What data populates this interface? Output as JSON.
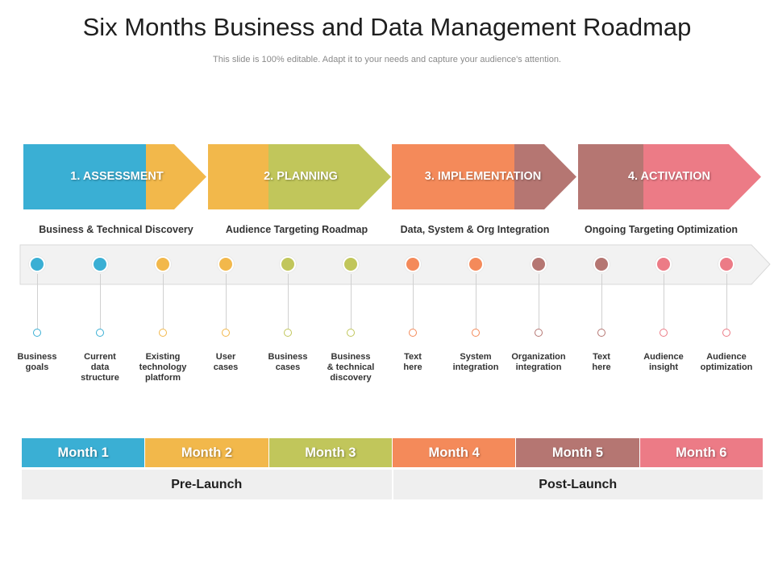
{
  "title": "Six Months Business and Data Management Roadmap",
  "subtitle": "This slide is 100% editable. Adapt it to your needs and capture your audience's attention.",
  "colors": {
    "blue": "#3aafd4",
    "yellow": "#f2b84b",
    "green": "#c1c65b",
    "orange": "#f48a5a",
    "mauve": "#b57672",
    "pink": "#ec7b86",
    "track": "#f2f2f2"
  },
  "phases": [
    {
      "label": "1. ASSESSMENT",
      "description": "Business  & Technical Discovery"
    },
    {
      "label": "2. PLANNING",
      "description": "Audience Targeting Roadmap"
    },
    {
      "label": "3. IMPLEMENTATION",
      "description": "Data, System & Org Integration"
    },
    {
      "label": "4. ACTIVATION",
      "description": "Ongoing Targeting Optimization"
    }
  ],
  "milestones": [
    {
      "label": "Business goals",
      "lines": [
        "Business",
        "goals"
      ]
    },
    {
      "label": "Current data structure",
      "lines": [
        "Current",
        "data",
        "structure"
      ]
    },
    {
      "label": "Existing technology platform",
      "lines": [
        "Existing",
        "technology",
        "platform"
      ]
    },
    {
      "label": "User cases",
      "lines": [
        "User",
        "cases"
      ]
    },
    {
      "label": "Business cases",
      "lines": [
        "Business",
        "cases"
      ]
    },
    {
      "label": "Business & technical discovery",
      "lines": [
        "Business",
        "& technical",
        "discovery"
      ]
    },
    {
      "label": "Text here",
      "lines": [
        "Text",
        "here"
      ]
    },
    {
      "label": "System integration",
      "lines": [
        "System",
        "integration"
      ]
    },
    {
      "label": "Organization integration",
      "lines": [
        "Organization",
        "integration"
      ]
    },
    {
      "label": "Text here",
      "lines": [
        "Text",
        "here"
      ]
    },
    {
      "label": "Audience insight",
      "lines": [
        "Audience",
        "insight"
      ]
    },
    {
      "label": "Audience optimization",
      "lines": [
        "Audience",
        "optimization"
      ]
    }
  ],
  "months": [
    "Month 1",
    "Month 2",
    "Month 3",
    "Month 4",
    "Month 5",
    "Month 6"
  ],
  "launch": {
    "pre": "Pre-Launch",
    "post": "Post-Launch"
  }
}
